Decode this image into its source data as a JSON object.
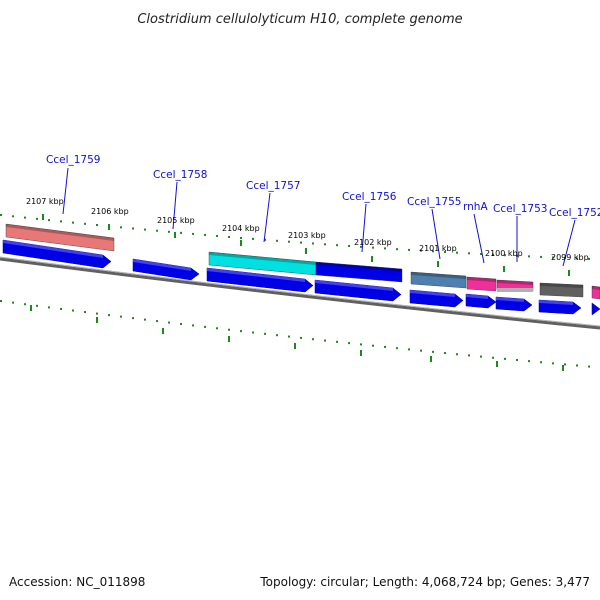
{
  "title": "Clostridium cellulolyticum H10, complete genome",
  "footer": {
    "accession": "Accession: NC_011898",
    "summary": "Topology: circular; Length: 4,068,724 bp; Genes: 3,477"
  },
  "tick_labels": [
    "2107 kbp",
    "2106 kbp",
    "2105 kbp",
    "2104 kbp",
    "2103 kbp",
    "2102 kbp",
    "2101 kbp",
    "2100 kbp",
    "2099 kbp"
  ],
  "gene_labels": [
    "Ccel_1759",
    "Ccel_1758",
    "Ccel_1757",
    "Ccel_1756",
    "Ccel_1755",
    "rnhA",
    "Ccel_1753",
    "Ccel_1752"
  ],
  "feature_colors": {
    "cds": "#0000e6",
    "backbone": "#808080",
    "tick": "#1a8a1a",
    "label_line": "#1010d0",
    "annot": [
      "#e87878",
      "#00e0e0",
      "#0000e6",
      "#4f7fae",
      "#f0309a",
      "#f0309a",
      "#606060",
      "#f0309a"
    ]
  }
}
